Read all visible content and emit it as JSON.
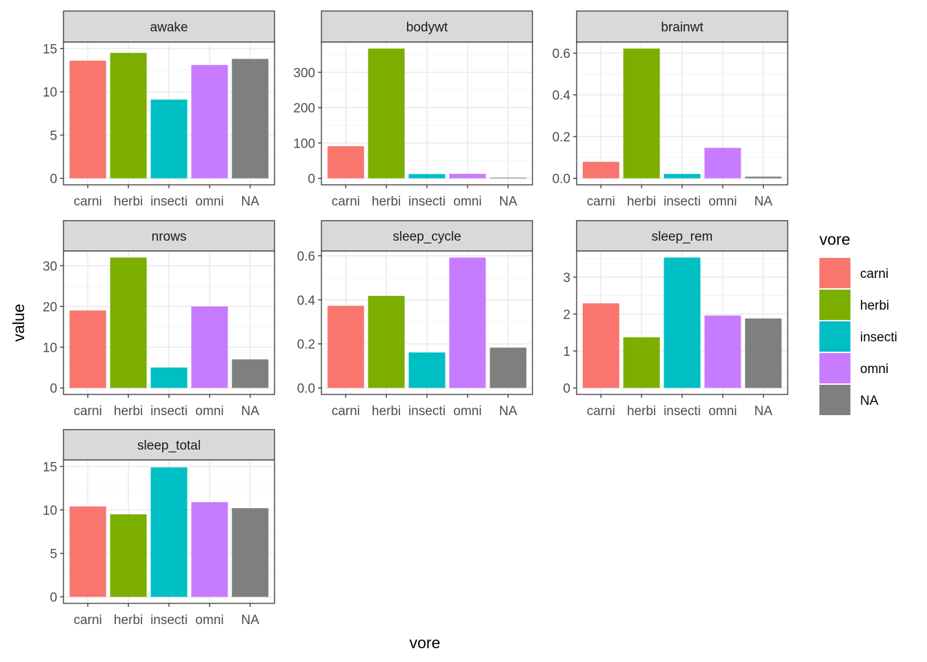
{
  "chart_data": {
    "type": "bar",
    "layout": "faceted",
    "xlabel": "vore",
    "ylabel": "value",
    "categories": [
      "carni",
      "herbi",
      "insecti",
      "omni",
      "NA"
    ],
    "colors": {
      "carni": "#F8766D",
      "herbi": "#7CAE00",
      "insecti": "#00BFC4",
      "omni": "#C77CFF",
      "NA": "#7F7F7F"
    },
    "legend": {
      "title": "vore",
      "position": "right",
      "entries": [
        "carni",
        "herbi",
        "insecti",
        "omni",
        "NA"
      ]
    },
    "grid": true,
    "facets": [
      {
        "name": "awake",
        "values": [
          13.6,
          14.5,
          9.1,
          13.1,
          13.8
        ],
        "ylim": [
          0,
          15
        ],
        "yticks": [
          0,
          5,
          10,
          15
        ],
        "ytick_labels": [
          "0",
          "5",
          "10",
          "15"
        ]
      },
      {
        "name": "bodywt",
        "values": [
          90.8,
          367.0,
          12.0,
          12.7,
          0.9
        ],
        "ylim": [
          0,
          367
        ],
        "yticks": [
          0,
          100,
          200,
          300
        ],
        "ytick_labels": [
          "0",
          "100",
          "200",
          "300"
        ]
      },
      {
        "name": "brainwt",
        "values": [
          0.079,
          0.622,
          0.021,
          0.146,
          0.008
        ],
        "ylim": [
          0,
          0.622
        ],
        "yticks": [
          0,
          0.2,
          0.4,
          0.6
        ],
        "ytick_labels": [
          "0.0",
          "0.2",
          "0.4",
          "0.6"
        ]
      },
      {
        "name": "nrows",
        "values": [
          19,
          32,
          5,
          20,
          7
        ],
        "ylim": [
          0,
          32
        ],
        "yticks": [
          0,
          10,
          20,
          30
        ],
        "ytick_labels": [
          "0",
          "10",
          "20",
          "30"
        ]
      },
      {
        "name": "sleep_cycle",
        "values": [
          0.373,
          0.418,
          0.161,
          0.592,
          0.183
        ],
        "ylim": [
          0,
          0.592
        ],
        "yticks": [
          0,
          0.2,
          0.4,
          0.6
        ],
        "ytick_labels": [
          "0.0",
          "0.2",
          "0.4",
          "0.6"
        ]
      },
      {
        "name": "sleep_rem",
        "values": [
          2.29,
          1.37,
          3.53,
          1.96,
          1.88
        ],
        "ylim": [
          0,
          3.53
        ],
        "yticks": [
          0,
          1,
          2,
          3
        ],
        "ytick_labels": [
          "0",
          "1",
          "2",
          "3"
        ]
      },
      {
        "name": "sleep_total",
        "values": [
          10.4,
          9.5,
          14.9,
          10.9,
          10.2
        ],
        "ylim": [
          0,
          15
        ],
        "yticks": [
          0,
          5,
          10,
          15
        ],
        "ytick_labels": [
          "0",
          "5",
          "10",
          "15"
        ]
      }
    ]
  }
}
